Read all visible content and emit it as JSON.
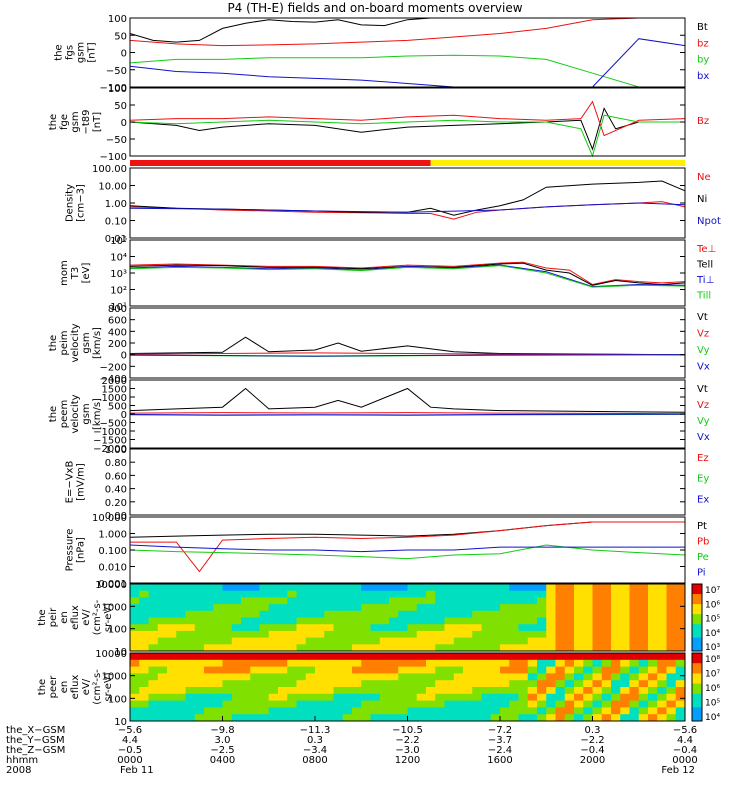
{
  "title": "P4 (TH-E) fields and on-board moments overview",
  "colors": {
    "black": "#000000",
    "red": "#ee1111",
    "green": "#11cc11",
    "blue": "#1111cc",
    "yellow": "#ffee00"
  },
  "chart_data": [
    {
      "type": "line",
      "panel": "fgs",
      "ylabel": [
        "the",
        "fgs",
        "gsm",
        "[nT]"
      ],
      "yticks": [
        "100",
        "50",
        "0",
        "−50",
        "−100"
      ],
      "ylim": [
        -100,
        100
      ],
      "x_range_hours": [
        0,
        24
      ],
      "series": [
        {
          "name": "Bt",
          "color": "#000000",
          "x": [
            0,
            1,
            2,
            3,
            4,
            5,
            6,
            7,
            8,
            9,
            10,
            11,
            12,
            13,
            14,
            15,
            16,
            17,
            18,
            19,
            20,
            21,
            22,
            23,
            24
          ],
          "values": [
            55,
            35,
            30,
            35,
            70,
            85,
            95,
            90,
            88,
            95,
            80,
            78,
            95,
            100,
            100,
            100,
            100,
            100,
            100,
            100,
            100,
            100,
            100,
            100,
            100
          ]
        },
        {
          "name": "bz",
          "color": "#ee1111",
          "x": [
            0,
            2,
            4,
            6,
            8,
            10,
            12,
            14,
            16,
            18,
            20,
            22,
            24
          ],
          "values": [
            35,
            25,
            20,
            22,
            25,
            30,
            35,
            45,
            55,
            70,
            95,
            100,
            100
          ]
        },
        {
          "name": "by",
          "color": "#11cc11",
          "x": [
            0,
            2,
            4,
            6,
            8,
            10,
            12,
            14,
            16,
            18,
            20,
            22,
            24
          ],
          "values": [
            -30,
            -20,
            -20,
            -15,
            -15,
            -15,
            -10,
            -8,
            -10,
            -20,
            -60,
            -100,
            -100
          ]
        },
        {
          "name": "bx",
          "color": "#1111cc",
          "x": [
            0,
            2,
            4,
            6,
            8,
            10,
            12,
            14,
            16,
            18,
            20,
            22,
            24
          ],
          "values": [
            -40,
            -55,
            -60,
            -70,
            -75,
            -80,
            -90,
            -100,
            -100,
            -100,
            -100,
            40,
            20
          ]
        }
      ]
    },
    {
      "type": "line",
      "panel": "fge",
      "ylabel": [
        "the",
        "fge",
        "gsm",
        "−t89",
        "[nT]"
      ],
      "yticks": [
        "100",
        "50",
        "0",
        "−50",
        "−100"
      ],
      "ylim": [
        -100,
        100
      ],
      "legend_label": "Bz",
      "series": [
        {
          "name": "black",
          "color": "#000000",
          "x": [
            0,
            2,
            3,
            4,
            6,
            8,
            10,
            12,
            14,
            16,
            18,
            19.5,
            20,
            20.5,
            21,
            22,
            24
          ],
          "values": [
            0,
            -10,
            -25,
            -15,
            -5,
            -10,
            -30,
            -15,
            -10,
            -5,
            0,
            5,
            -80,
            40,
            -20,
            0,
            0
          ]
        },
        {
          "name": "red",
          "color": "#ee1111",
          "x": [
            0,
            2,
            4,
            6,
            8,
            10,
            12,
            14,
            16,
            18,
            19.5,
            20,
            20.5,
            22,
            24
          ],
          "values": [
            5,
            10,
            10,
            15,
            10,
            5,
            15,
            20,
            10,
            5,
            10,
            60,
            -40,
            5,
            10
          ]
        },
        {
          "name": "green",
          "color": "#11cc11",
          "x": [
            0,
            2,
            4,
            6,
            8,
            10,
            12,
            14,
            16,
            18,
            19.5,
            20,
            20.5,
            22,
            24
          ],
          "values": [
            0,
            -5,
            0,
            5,
            0,
            -5,
            0,
            5,
            0,
            0,
            -20,
            -100,
            20,
            0,
            0
          ]
        }
      ]
    },
    {
      "type": "line",
      "panel": "density",
      "ylabel": [
        "Density",
        "[cm−3]"
      ],
      "yticks": [
        "100.00",
        "10.00",
        "1.00",
        "0.10",
        "0.01"
      ],
      "log": true,
      "ylim": [
        0.01,
        100
      ],
      "series": [
        {
          "name": "Ne",
          "color": "#ee1111",
          "x": [
            0,
            2,
            4,
            6,
            8,
            10,
            12,
            13,
            14,
            15,
            16,
            18,
            20,
            22,
            23,
            24
          ],
          "values": [
            0.6,
            0.5,
            0.4,
            0.35,
            0.3,
            0.28,
            0.25,
            0.25,
            0.12,
            0.3,
            0.4,
            0.6,
            0.8,
            1.0,
            1.2,
            0.6
          ]
        },
        {
          "name": "Ni",
          "color": "#000000",
          "x": [
            0,
            2,
            4,
            6,
            8,
            10,
            12,
            13,
            14,
            15,
            16,
            17,
            18,
            20,
            22,
            23,
            24
          ],
          "values": [
            0.7,
            0.5,
            0.45,
            0.4,
            0.35,
            0.3,
            0.3,
            0.5,
            0.2,
            0.4,
            0.7,
            1.5,
            8,
            12,
            15,
            18,
            5
          ]
        },
        {
          "name": "Npot",
          "color": "#1111cc",
          "x": [
            0,
            4,
            8,
            12,
            16,
            18,
            20,
            22,
            24
          ],
          "values": [
            0.5,
            0.45,
            0.35,
            0.3,
            0.4,
            0.6,
            0.8,
            1.0,
            0.8
          ]
        }
      ]
    },
    {
      "type": "line",
      "panel": "temperature",
      "ylabel": [
        "mom",
        "T3",
        "[eV]"
      ],
      "yticks": [
        "10⁵",
        "10⁴",
        "10³",
        "10²",
        "10¹"
      ],
      "log": true,
      "ylim": [
        10,
        100000
      ],
      "series": [
        {
          "name": "Te⊥",
          "color": "#ee1111",
          "x": [
            0,
            2,
            4,
            6,
            8,
            10,
            12,
            14,
            16,
            17,
            18,
            19,
            20,
            21,
            22,
            23,
            24
          ],
          "values": [
            3000,
            3500,
            3000,
            2500,
            2500,
            2000,
            3000,
            2500,
            4000,
            4500,
            2000,
            1500,
            200,
            400,
            300,
            250,
            300
          ]
        },
        {
          "name": "Tell",
          "color": "#000000",
          "x": [
            0,
            2,
            4,
            6,
            8,
            10,
            12,
            14,
            16,
            17,
            18,
            19,
            20,
            21,
            22,
            23,
            24
          ],
          "values": [
            2500,
            3000,
            2800,
            2200,
            2200,
            1800,
            2500,
            2200,
            3500,
            4000,
            1500,
            1000,
            180,
            350,
            250,
            200,
            250
          ]
        },
        {
          "name": "Ti⊥",
          "color": "#1111cc",
          "x": [
            0,
            2,
            4,
            6,
            8,
            10,
            12,
            14,
            16,
            18,
            20,
            22,
            24
          ],
          "values": [
            2000,
            2500,
            2200,
            1800,
            2000,
            1500,
            2500,
            2000,
            3000,
            1200,
            150,
            200,
            180
          ]
        },
        {
          "name": "Till",
          "color": "#11cc11",
          "x": [
            0,
            2,
            4,
            6,
            8,
            10,
            12,
            14,
            16,
            18,
            20,
            22,
            24
          ],
          "values": [
            1800,
            2200,
            2000,
            1600,
            1800,
            1400,
            2200,
            1800,
            2800,
            1000,
            140,
            180,
            160
          ]
        }
      ]
    },
    {
      "type": "line",
      "panel": "peim-velocity",
      "ylabel": [
        "the",
        "peim",
        "velocity",
        "gsm",
        "[km/s]"
      ],
      "yticks": [
        "800",
        "600",
        "400",
        "200",
        "0",
        "−200",
        "−400"
      ],
      "ylim": [
        -400,
        800
      ],
      "series": [
        {
          "name": "Vt",
          "color": "#000000",
          "x": [
            0,
            2,
            4,
            5,
            6,
            8,
            9,
            10,
            12,
            14,
            16,
            24
          ],
          "values": [
            20,
            30,
            40,
            300,
            50,
            80,
            200,
            60,
            150,
            50,
            20,
            0
          ]
        },
        {
          "name": "Vz",
          "color": "#ee1111",
          "x": [
            0,
            4,
            8,
            12,
            16,
            24
          ],
          "values": [
            10,
            20,
            30,
            20,
            10,
            0
          ]
        },
        {
          "name": "Vy",
          "color": "#11cc11",
          "x": [
            0,
            4,
            8,
            12,
            16,
            24
          ],
          "values": [
            -10,
            -20,
            -30,
            -20,
            -10,
            0
          ]
        },
        {
          "name": "Vx",
          "color": "#1111cc",
          "x": [
            0,
            4,
            8,
            12,
            16,
            24
          ],
          "values": [
            -5,
            -15,
            -25,
            -15,
            -5,
            0
          ]
        }
      ]
    },
    {
      "type": "line",
      "panel": "peem-velocity",
      "ylabel": [
        "the",
        "peem",
        "velocity",
        "gsm",
        "[km/s]"
      ],
      "yticks": [
        "2000",
        "1500",
        "1000",
        "500",
        "0",
        "−500",
        "−1000",
        "−1500",
        "−2000"
      ],
      "ylim": [
        -2000,
        2000
      ],
      "series": [
        {
          "name": "Vt",
          "color": "#000000",
          "x": [
            0,
            2,
            4,
            5,
            6,
            8,
            9,
            10,
            12,
            13,
            14,
            16,
            24
          ],
          "values": [
            200,
            300,
            400,
            1500,
            300,
            400,
            800,
            400,
            1500,
            400,
            300,
            200,
            100
          ]
        },
        {
          "name": "Vz",
          "color": "#ee1111",
          "x": [
            0,
            4,
            8,
            12,
            16,
            24
          ],
          "values": [
            50,
            80,
            60,
            80,
            50,
            20
          ]
        },
        {
          "name": "Vy",
          "color": "#11cc11",
          "x": [
            0,
            4,
            8,
            12,
            16,
            24
          ],
          "values": [
            -50,
            -80,
            -60,
            -80,
            -50,
            -20
          ]
        },
        {
          "name": "Vx",
          "color": "#1111cc",
          "x": [
            0,
            4,
            8,
            12,
            16,
            24
          ],
          "values": [
            -30,
            -60,
            -40,
            -60,
            -30,
            -10
          ]
        }
      ]
    },
    {
      "type": "line",
      "panel": "efield",
      "ylabel": [
        "E=−VxB",
        "[mV/m]"
      ],
      "yticks": [
        "1.00",
        "0.80",
        "0.60",
        "0.40",
        "0.20",
        "0.00"
      ],
      "ylim": [
        0,
        1
      ],
      "series": [
        {
          "name": "Ez",
          "color": "#ee1111",
          "x": [],
          "values": []
        },
        {
          "name": "Ey",
          "color": "#11cc11",
          "x": [],
          "values": []
        },
        {
          "name": "Ex",
          "color": "#1111cc",
          "x": [],
          "values": []
        }
      ]
    },
    {
      "type": "line",
      "panel": "pressure",
      "ylabel": [
        "Pressure",
        "[nPa]"
      ],
      "yticks": [
        "10.000",
        "1.000",
        "0.100",
        "0.010",
        "0.001"
      ],
      "log": true,
      "ylim": [
        0.001,
        10
      ],
      "series": [
        {
          "name": "Pt",
          "color": "#000000",
          "x": [
            0,
            2,
            4,
            6,
            8,
            10,
            12,
            14,
            16,
            18,
            20,
            22,
            24
          ],
          "values": [
            0.6,
            0.7,
            0.8,
            0.9,
            0.9,
            0.8,
            0.7,
            0.9,
            1.5,
            3,
            5,
            5,
            5
          ]
        },
        {
          "name": "Pb",
          "color": "#ee1111",
          "x": [
            0,
            2,
            3,
            4,
            6,
            8,
            10,
            12,
            14,
            16,
            18,
            20,
            22,
            24
          ],
          "values": [
            0.3,
            0.3,
            0.005,
            0.4,
            0.5,
            0.6,
            0.5,
            0.6,
            0.8,
            1.5,
            3,
            5,
            5,
            5
          ]
        },
        {
          "name": "Pe",
          "color": "#11cc11",
          "x": [
            0,
            2,
            4,
            6,
            8,
            10,
            12,
            14,
            16,
            18,
            20,
            22,
            24
          ],
          "values": [
            0.1,
            0.08,
            0.07,
            0.06,
            0.05,
            0.04,
            0.03,
            0.05,
            0.06,
            0.2,
            0.1,
            0.07,
            0.05
          ]
        },
        {
          "name": "Pi",
          "color": "#1111cc",
          "x": [
            0,
            2,
            4,
            6,
            8,
            10,
            12,
            14,
            16,
            24
          ],
          "values": [
            0.2,
            0.15,
            0.12,
            0.1,
            0.1,
            0.08,
            0.1,
            0.1,
            0.15,
            0.15
          ]
        }
      ]
    },
    {
      "type": "heatmap",
      "panel": "peir-eflux",
      "ylabel": [
        "the",
        "peir",
        "en",
        "eflux",
        "eV/",
        "(cm²-s-",
        "sr-eV)"
      ],
      "yticks": [
        "10000",
        "1000",
        "100",
        "10"
      ],
      "log": true,
      "ylim": [
        5,
        30000
      ],
      "colorbar_ticks": [
        "10⁷",
        "10⁶",
        "10⁵",
        "10⁴",
        "10³"
      ]
    },
    {
      "type": "heatmap",
      "panel": "peer-eflux",
      "ylabel": [
        "the",
        "peer",
        "en",
        "eflux",
        "eV/",
        "(cm²-s-",
        "sr-eV)"
      ],
      "yticks": [
        "10000",
        "1000",
        "100",
        "10"
      ],
      "log": true,
      "ylim": [
        5,
        30000
      ],
      "colorbar_ticks": [
        "10⁸",
        "10⁷",
        "10⁶",
        "10⁵",
        "10⁴"
      ]
    }
  ],
  "mode_bar": {
    "segments": [
      {
        "from": 0,
        "to": 13,
        "color": "#ee1111"
      },
      {
        "from": 13,
        "to": 24,
        "color": "#ffee00"
      }
    ]
  },
  "xaxis": {
    "rows": [
      {
        "label": "the_X−GSM",
        "values": [
          "−5.6",
          "−9.8",
          "−11.3",
          "−10.5",
          "−7.2",
          "0.3",
          "−5.6"
        ]
      },
      {
        "label": "the_Y−GSM",
        "values": [
          "4.4",
          "3.0",
          "0.3",
          "−2.2",
          "−3.7",
          "−2.2",
          "4.4"
        ]
      },
      {
        "label": "the_Z−GSM",
        "values": [
          "−0.5",
          "−2.5",
          "−3.4",
          "−3.0",
          "−2.4",
          "−0.4",
          "−0.4"
        ]
      },
      {
        "label": "hhmm",
        "values": [
          "0000",
          "0400",
          "0800",
          "1200",
          "1600",
          "2000",
          "0000"
        ]
      },
      {
        "label": "2008",
        "values": [
          "Feb 11",
          "",
          "",
          "",
          "",
          "",
          "Feb 12"
        ]
      }
    ],
    "tick_hours": [
      0,
      4,
      8,
      12,
      16,
      20,
      24
    ]
  }
}
